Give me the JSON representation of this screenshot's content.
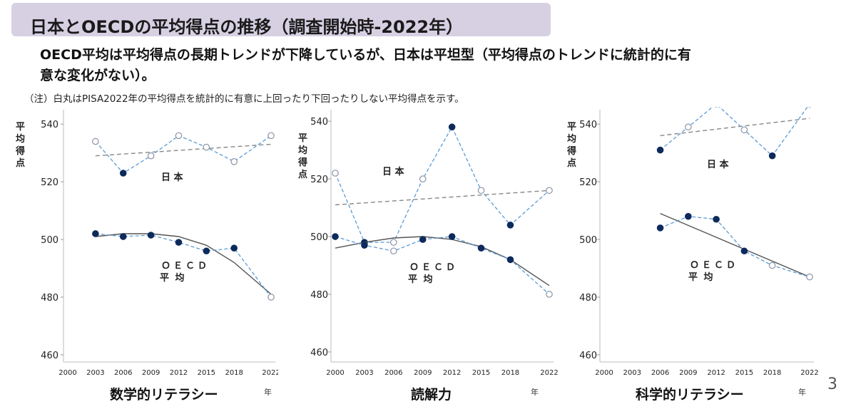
{
  "header": {
    "title": "日本とOECDの平均得点の推移（調査開始時-2022年）",
    "summary_line1": "OECD平均は平均得点の長期トレンドが下降しているが、日本は平坦型（平均得点のトレンドに統計的に有",
    "summary_line2": "意な変化がない）。",
    "note": "（注）白丸はPISA2022年の平均得点を統計的に有意に上回ったり下回ったりしない平均得点を示す。"
  },
  "page_number": "3",
  "chart_data": [
    {
      "type": "line",
      "title": "数学的リテラシー",
      "xlabel": "年",
      "ylabel": "平均得点",
      "x_ticks": [
        "2000",
        "2003",
        "2006",
        "2009",
        "2012",
        "2015",
        "2018",
        "2022"
      ],
      "y_ticks": [
        540,
        520,
        500,
        480,
        460
      ],
      "ylim": [
        459,
        544
      ],
      "grid": false,
      "series": [
        {
          "name": "日 本",
          "color": "#5b9bd5",
          "points": [
            {
              "x": 2003,
              "y": 534,
              "filled": false
            },
            {
              "x": 2006,
              "y": 523,
              "filled": true
            },
            {
              "x": 2009,
              "y": 529,
              "filled": false
            },
            {
              "x": 2012,
              "y": 536,
              "filled": false
            },
            {
              "x": 2015,
              "y": 532,
              "filled": false
            },
            {
              "x": 2018,
              "y": 527,
              "filled": false
            },
            {
              "x": 2022,
              "y": 536,
              "filled": false
            }
          ],
          "trend": {
            "style": "dashed",
            "points": [
              [
                2003,
                529
              ],
              [
                2022,
                533
              ]
            ]
          }
        },
        {
          "name": "ＯＥＣＤ 平 均",
          "color": "#5b9bd5",
          "points": [
            {
              "x": 2003,
              "y": 502,
              "filled": true
            },
            {
              "x": 2006,
              "y": 501,
              "filled": true
            },
            {
              "x": 2009,
              "y": 501.5,
              "filled": true
            },
            {
              "x": 2012,
              "y": 499,
              "filled": true
            },
            {
              "x": 2015,
              "y": 496,
              "filled": true
            },
            {
              "x": 2018,
              "y": 497,
              "filled": true
            },
            {
              "x": 2022,
              "y": 480,
              "filled": false
            }
          ],
          "trend": {
            "style": "solid",
            "points": [
              [
                2003,
                501
              ],
              [
                2006,
                502
              ],
              [
                2009,
                502
              ],
              [
                2012,
                501
              ],
              [
                2015,
                498
              ],
              [
                2018,
                492
              ],
              [
                2022,
                481
              ]
            ]
          }
        }
      ]
    },
    {
      "type": "line",
      "title": "読解力",
      "xlabel": "年",
      "ylabel": "平均得点",
      "x_ticks": [
        "2000",
        "2003",
        "2006",
        "2009",
        "2012",
        "2015",
        "2018",
        "2022"
      ],
      "y_ticks": [
        540,
        520,
        500,
        480,
        460
      ],
      "ylim": [
        458,
        543
      ],
      "grid": false,
      "series": [
        {
          "name": "日 本",
          "color": "#5b9bd5",
          "points": [
            {
              "x": 2000,
              "y": 522,
              "filled": false
            },
            {
              "x": 2003,
              "y": 498,
              "filled": true
            },
            {
              "x": 2006,
              "y": 498,
              "filled": false
            },
            {
              "x": 2009,
              "y": 520,
              "filled": false
            },
            {
              "x": 2012,
              "y": 538,
              "filled": true
            },
            {
              "x": 2015,
              "y": 516,
              "filled": false
            },
            {
              "x": 2018,
              "y": 504,
              "filled": true
            },
            {
              "x": 2022,
              "y": 516,
              "filled": false
            }
          ],
          "trend": {
            "style": "dashed",
            "points": [
              [
                2000,
                511
              ],
              [
                2022,
                516
              ]
            ]
          }
        },
        {
          "name": "ＯＥＣＤ 平 均",
          "color": "#5b9bd5",
          "points": [
            {
              "x": 2000,
              "y": 500,
              "filled": true
            },
            {
              "x": 2003,
              "y": 497,
              "filled": true
            },
            {
              "x": 2006,
              "y": 495,
              "filled": false
            },
            {
              "x": 2009,
              "y": 499,
              "filled": true
            },
            {
              "x": 2012,
              "y": 500,
              "filled": true
            },
            {
              "x": 2015,
              "y": 496,
              "filled": true
            },
            {
              "x": 2018,
              "y": 492,
              "filled": true
            },
            {
              "x": 2022,
              "y": 480,
              "filled": false
            }
          ],
          "trend": {
            "style": "solid",
            "points": [
              [
                2000,
                496
              ],
              [
                2003,
                498
              ],
              [
                2006,
                499.5
              ],
              [
                2009,
                500
              ],
              [
                2012,
                499
              ],
              [
                2015,
                496.5
              ],
              [
                2018,
                492
              ],
              [
                2022,
                483
              ]
            ]
          }
        }
      ]
    },
    {
      "type": "line",
      "title": "科学的リテラシー",
      "xlabel": "年",
      "ylabel": "平均得点",
      "x_ticks": [
        "2000",
        "2003",
        "2006",
        "2009",
        "2012",
        "2015",
        "2018",
        "2022"
      ],
      "y_ticks": [
        540,
        520,
        500,
        480,
        460
      ],
      "ylim": [
        459,
        544
      ],
      "grid": false,
      "series": [
        {
          "name": "日 本",
          "color": "#5b9bd5",
          "points": [
            {
              "x": 2006,
              "y": 531,
              "filled": true
            },
            {
              "x": 2009,
              "y": 539,
              "filled": false
            },
            {
              "x": 2012,
              "y": 547,
              "filled": false
            },
            {
              "x": 2015,
              "y": 538,
              "filled": false
            },
            {
              "x": 2018,
              "y": 529,
              "filled": true
            },
            {
              "x": 2022,
              "y": 547,
              "filled": false
            }
          ],
          "trend": {
            "style": "dashed",
            "points": [
              [
                2006,
                536
              ],
              [
                2022,
                542
              ]
            ]
          }
        },
        {
          "name": "ＯＥＣＤ 平 均",
          "color": "#5b9bd5",
          "points": [
            {
              "x": 2006,
              "y": 504,
              "filled": true
            },
            {
              "x": 2009,
              "y": 508,
              "filled": true
            },
            {
              "x": 2012,
              "y": 507,
              "filled": true
            },
            {
              "x": 2015,
              "y": 496,
              "filled": true
            },
            {
              "x": 2018,
              "y": 491,
              "filled": false
            },
            {
              "x": 2022,
              "y": 487,
              "filled": false
            }
          ],
          "trend": {
            "style": "solid",
            "points": [
              [
                2006,
                509
              ],
              [
                2022,
                487
              ]
            ]
          }
        }
      ]
    }
  ]
}
